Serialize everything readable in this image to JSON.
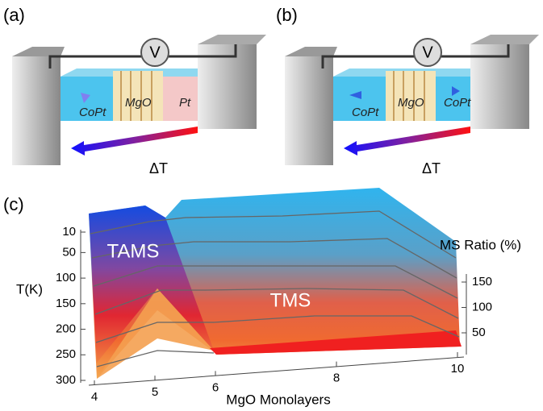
{
  "panels": [
    {
      "label": "(a)",
      "voltmeter": "V",
      "layers": [
        "CoPt",
        "MgO",
        "Pt"
      ],
      "gradient": "ΔT"
    },
    {
      "label": "(b)",
      "voltmeter": "V",
      "layers": [
        "CoPt",
        "MgO",
        "CoPt"
      ],
      "gradient": "ΔT"
    }
  ],
  "plot": {
    "label": "(c)",
    "x_label": "MgO Monolayers",
    "x_lim": [
      4,
      10
    ],
    "x_ticks": [
      4,
      5,
      6,
      8,
      10
    ],
    "t_label": "T(K)",
    "t_lim": [
      10,
      300
    ],
    "t_ticks": [
      10,
      50,
      100,
      150,
      200,
      250,
      300
    ],
    "z_label": "MS Ratio (%)",
    "z_lim": [
      50,
      150
    ],
    "z_ticks": [
      50,
      100,
      150
    ],
    "regions": [
      "TAMS",
      "TMS"
    ]
  }
}
